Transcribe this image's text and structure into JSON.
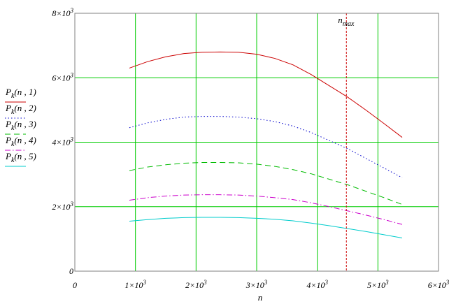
{
  "chart_data": {
    "type": "line",
    "title": "",
    "xlabel": "n",
    "ylabel": "",
    "xlim": [
      0,
      6000
    ],
    "ylim": [
      0,
      8000
    ],
    "x_ticks": [
      {
        "value": 0,
        "mantissa": "0",
        "exp": ""
      },
      {
        "value": 1000,
        "mantissa": "1×10",
        "exp": "3"
      },
      {
        "value": 2000,
        "mantissa": "2×10",
        "exp": "3"
      },
      {
        "value": 3000,
        "mantissa": "3×10",
        "exp": "3"
      },
      {
        "value": 4000,
        "mantissa": "4×10",
        "exp": "3"
      },
      {
        "value": 5000,
        "mantissa": "5×10",
        "exp": "3"
      },
      {
        "value": 6000,
        "mantissa": "6×10",
        "exp": "3"
      }
    ],
    "y_ticks": [
      {
        "value": 0,
        "mantissa": "0",
        "exp": ""
      },
      {
        "value": 2000,
        "mantissa": "2×10",
        "exp": "3"
      },
      {
        "value": 4000,
        "mantissa": "4×10",
        "exp": "3"
      },
      {
        "value": 6000,
        "mantissa": "6×10",
        "exp": "3"
      },
      {
        "value": 8000,
        "mantissa": "8×10",
        "exp": "3"
      }
    ],
    "grid": true,
    "grid_color": "#00cc00",
    "legend_position": "left",
    "x": [
      900,
      1200,
      1500,
      1800,
      2100,
      2400,
      2700,
      3000,
      3300,
      3600,
      3900,
      4200,
      4500,
      4800,
      5100,
      5400
    ],
    "series": [
      {
        "name_main": "P",
        "name_sub": "k",
        "name_args": "(n , 1)",
        "color": "#cc0000",
        "dash": "",
        "values": [
          6300,
          6500,
          6650,
          6750,
          6790,
          6800,
          6790,
          6730,
          6600,
          6400,
          6100,
          5750,
          5400,
          5000,
          4580,
          4150
        ]
      },
      {
        "name_main": "P",
        "name_sub": "k",
        "name_args": "(n , 2)",
        "color": "#0000cc",
        "dash": "1.5,3",
        "values": [
          4450,
          4600,
          4710,
          4780,
          4800,
          4800,
          4780,
          4730,
          4640,
          4500,
          4300,
          4050,
          3800,
          3500,
          3200,
          2900
        ]
      },
      {
        "name_main": "P",
        "name_sub": "k",
        "name_args": "(n , 3)",
        "color": "#00bb00",
        "dash": "8,5",
        "values": [
          3120,
          3230,
          3300,
          3350,
          3370,
          3370,
          3360,
          3320,
          3250,
          3150,
          3020,
          2850,
          2680,
          2480,
          2280,
          2070
        ]
      },
      {
        "name_main": "P",
        "name_sub": "k",
        "name_args": "(n , 4)",
        "color": "#cc00cc",
        "dash": "8,3,1.5,3",
        "values": [
          2200,
          2280,
          2330,
          2360,
          2370,
          2370,
          2360,
          2330,
          2280,
          2220,
          2120,
          2000,
          1870,
          1740,
          1600,
          1450
        ]
      },
      {
        "name_main": "P",
        "name_sub": "k",
        "name_args": "(n , 5)",
        "color": "#00cccc",
        "dash": "",
        "values": [
          1550,
          1600,
          1640,
          1660,
          1670,
          1670,
          1660,
          1640,
          1610,
          1560,
          1490,
          1410,
          1320,
          1230,
          1130,
          1030
        ]
      }
    ],
    "annotations": [
      {
        "type": "vline",
        "x": 4480,
        "color": "#cc0000",
        "dash": "3,2",
        "label_main": "n",
        "label_sub": "max"
      }
    ]
  }
}
